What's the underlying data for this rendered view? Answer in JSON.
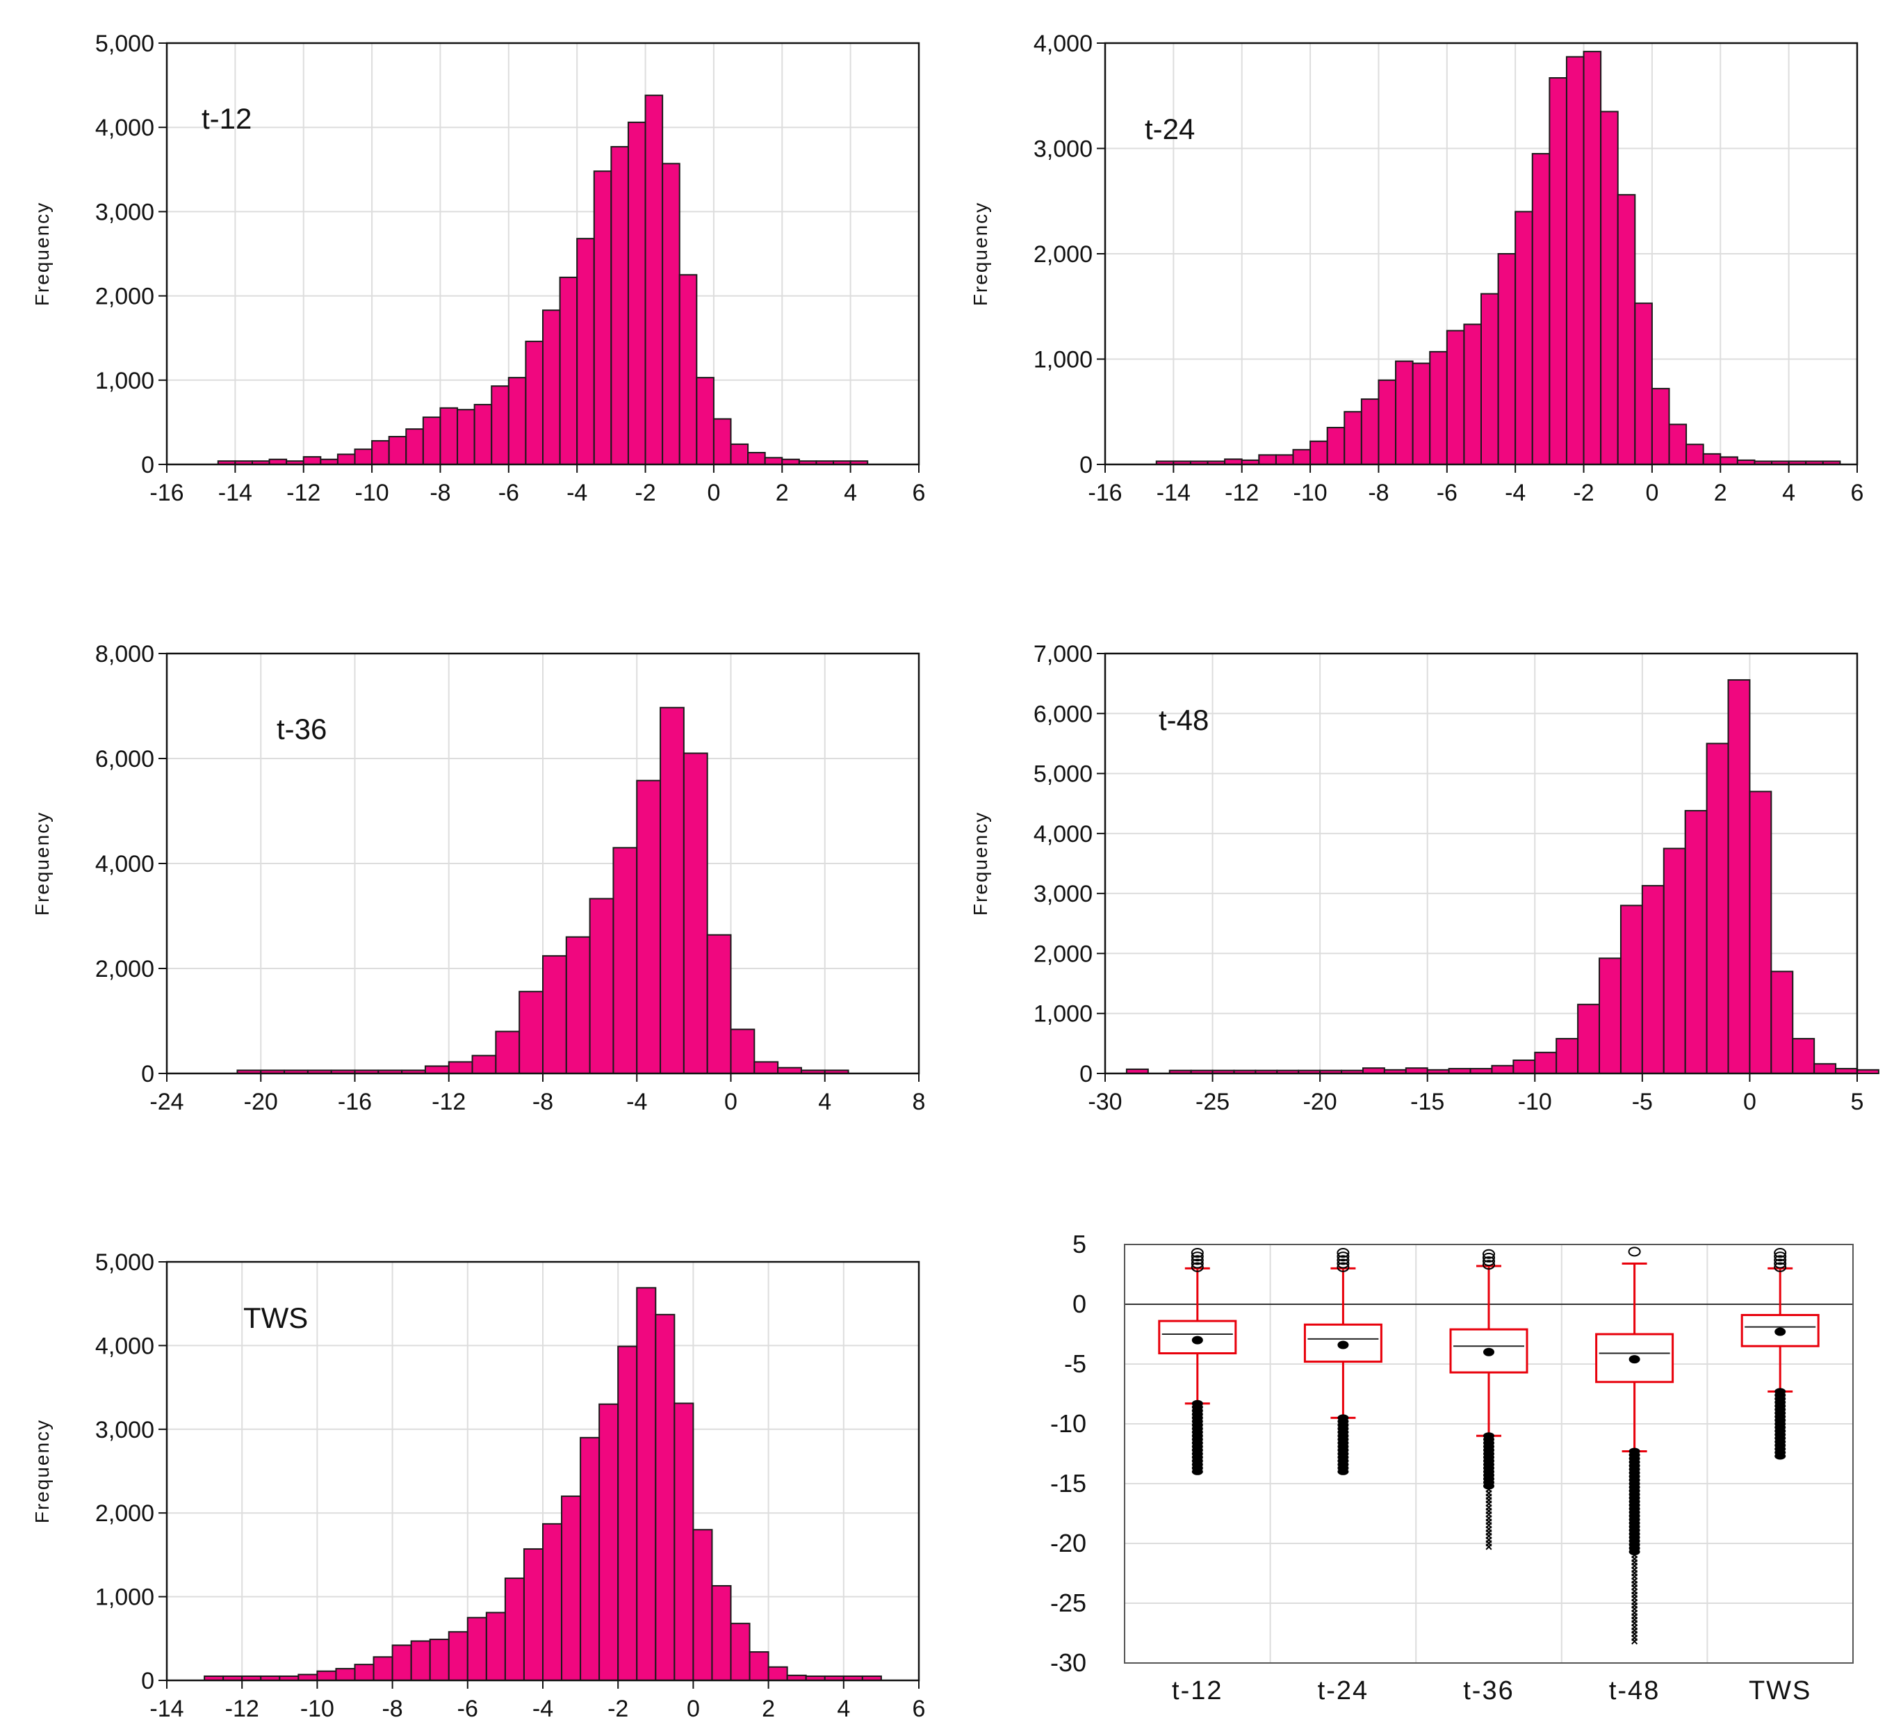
{
  "colors": {
    "bar_fill": "#f0077f",
    "bar_stroke": "#1a1a1a",
    "grid": "#dddddd",
    "box": "#e8000b",
    "outlier": "#000000"
  },
  "chart_data": [
    {
      "id": "t12",
      "type": "bar",
      "title": "t-12",
      "ylabel": "Frequency",
      "xlim": [
        -16,
        6
      ],
      "xticks": [
        -16,
        -14,
        -12,
        -10,
        -8,
        -6,
        -4,
        -2,
        0,
        2,
        4,
        6
      ],
      "ylim": [
        0,
        5000
      ],
      "yticks": [
        0,
        1000,
        2000,
        3000,
        4000,
        5000
      ],
      "ytick_labels": [
        "0",
        "1,000",
        "2,000",
        "3,000",
        "4,000",
        "5,000"
      ],
      "bin_start": -14.5,
      "bin_width": 0.5,
      "values": [
        40,
        40,
        40,
        60,
        40,
        90,
        60,
        120,
        180,
        280,
        330,
        420,
        560,
        670,
        650,
        710,
        930,
        1030,
        1460,
        1830,
        2220,
        2680,
        3480,
        3770,
        4060,
        4380,
        3570,
        2250,
        1030,
        540,
        240,
        140,
        80,
        60,
        40,
        40,
        40,
        40
      ]
    },
    {
      "id": "t24",
      "type": "bar",
      "title": "t-24",
      "ylabel": "Frequency",
      "xlim": [
        -16,
        6
      ],
      "xticks": [
        -16,
        -14,
        -12,
        -10,
        -8,
        -6,
        -4,
        -2,
        0,
        2,
        4,
        6
      ],
      "ylim": [
        0,
        4000
      ],
      "yticks": [
        0,
        1000,
        2000,
        3000,
        4000
      ],
      "ytick_labels": [
        "0",
        "1,000",
        "2,000",
        "3,000",
        "4,000"
      ],
      "bin_start": -14.5,
      "bin_width": 0.5,
      "values": [
        30,
        30,
        30,
        30,
        50,
        40,
        90,
        90,
        140,
        220,
        350,
        500,
        620,
        800,
        980,
        960,
        1070,
        1270,
        1330,
        1620,
        2000,
        2400,
        2950,
        3670,
        3870,
        3920,
        3350,
        2560,
        1530,
        720,
        380,
        190,
        100,
        70,
        40,
        30,
        30,
        30,
        30,
        30
      ]
    },
    {
      "id": "t36",
      "type": "bar",
      "title": "t-36",
      "ylabel": "Frequency",
      "xlim": [
        -24,
        8
      ],
      "xticks": [
        -24,
        -20,
        -16,
        -12,
        -8,
        -4,
        0,
        4,
        8
      ],
      "ylim": [
        0,
        8000
      ],
      "yticks": [
        0,
        2000,
        4000,
        6000,
        8000
      ],
      "ytick_labels": [
        "0",
        "2,000",
        "4,000",
        "6,000",
        "8,000"
      ],
      "bin_start": -21,
      "bin_width": 1,
      "values": [
        60,
        60,
        60,
        60,
        60,
        60,
        60,
        60,
        140,
        220,
        340,
        800,
        1560,
        2240,
        2600,
        3330,
        4300,
        5580,
        6970,
        6100,
        2640,
        840,
        220,
        110,
        60,
        60
      ]
    },
    {
      "id": "t48",
      "type": "bar",
      "title": "t-48",
      "ylabel": "Frequency",
      "xlim": [
        -30,
        5
      ],
      "xticks": [
        -30,
        -25,
        -20,
        -15,
        -10,
        -5,
        0,
        5
      ],
      "ylim": [
        0,
        7000
      ],
      "yticks": [
        0,
        1000,
        2000,
        3000,
        4000,
        5000,
        6000,
        7000
      ],
      "ytick_labels": [
        "0",
        "1,000",
        "2,000",
        "3,000",
        "4,000",
        "5,000",
        "6,000",
        "7,000"
      ],
      "bin_start": -29,
      "bin_width": 1,
      "values": [
        70,
        0,
        50,
        50,
        50,
        50,
        50,
        50,
        50,
        50,
        50,
        90,
        60,
        90,
        60,
        80,
        80,
        130,
        220,
        350,
        580,
        1150,
        1920,
        2800,
        3130,
        3750,
        4380,
        5500,
        6560,
        4700,
        1700,
        580,
        160,
        80,
        60
      ]
    },
    {
      "id": "tws",
      "type": "bar",
      "title": "TWS",
      "ylabel": "Frequency",
      "xlim": [
        -14,
        6
      ],
      "xticks": [
        -14,
        -12,
        -10,
        -8,
        -6,
        -4,
        -2,
        0,
        2,
        4,
        6
      ],
      "ylim": [
        0,
        5000
      ],
      "yticks": [
        0,
        1000,
        2000,
        3000,
        4000,
        5000
      ],
      "ytick_labels": [
        "0",
        "1,000",
        "2,000",
        "3,000",
        "4,000",
        "5,000"
      ],
      "bin_start": -13,
      "bin_width": 0.5,
      "values": [
        50,
        50,
        50,
        50,
        50,
        70,
        110,
        140,
        190,
        280,
        420,
        470,
        490,
        580,
        750,
        810,
        1220,
        1570,
        1870,
        2200,
        2900,
        3300,
        3990,
        4690,
        4370,
        3310,
        1800,
        1130,
        680,
        340,
        160,
        60,
        50,
        50,
        50,
        50
      ]
    },
    {
      "id": "box",
      "type": "box",
      "categories": [
        "t-12",
        "t-24",
        "t-36",
        "t-48",
        "TWS"
      ],
      "ylim": [
        -30,
        5
      ],
      "yticks": [
        5,
        0,
        -5,
        -10,
        -15,
        -20,
        -25,
        -30
      ],
      "ytick_labels": [
        "5",
        "0",
        "-5",
        "-10",
        "-15",
        "-20",
        "-25",
        "-30"
      ],
      "boxes": [
        {
          "q1": -4.1,
          "median": -2.5,
          "q3": -1.4,
          "mean": -3.0,
          "whisker_low": -8.3,
          "whisker_high": 3.0,
          "outliers_low": [
            -8.3,
            -14.2
          ],
          "outliers_high": [
            3.1,
            4.4
          ]
        },
        {
          "q1": -4.8,
          "median": -2.9,
          "q3": -1.7,
          "mean": -3.4,
          "whisker_low": -9.5,
          "whisker_high": 3.0,
          "outliers_low": [
            -9.5,
            -14.2
          ],
          "outliers_high": [
            3.1,
            4.4
          ]
        },
        {
          "q1": -5.7,
          "median": -3.5,
          "q3": -2.1,
          "mean": -4.0,
          "whisker_low": -11.0,
          "whisker_high": 3.2,
          "outliers_low": [
            -11.0,
            -20.5
          ],
          "outliers_high": [
            3.3,
            4.4
          ]
        },
        {
          "q1": -6.5,
          "median": -4.1,
          "q3": -2.5,
          "mean": -4.6,
          "whisker_low": -12.3,
          "whisker_high": 3.4,
          "outliers_low": [
            -12.3,
            -28.3
          ],
          "outliers_high": [
            4.4
          ]
        },
        {
          "q1": -3.5,
          "median": -1.9,
          "q3": -0.9,
          "mean": -2.3,
          "whisker_low": -7.3,
          "whisker_high": 3.0,
          "outliers_low": [
            -7.3,
            -12.8
          ],
          "outliers_high": [
            3.1,
            4.4
          ]
        }
      ]
    }
  ]
}
